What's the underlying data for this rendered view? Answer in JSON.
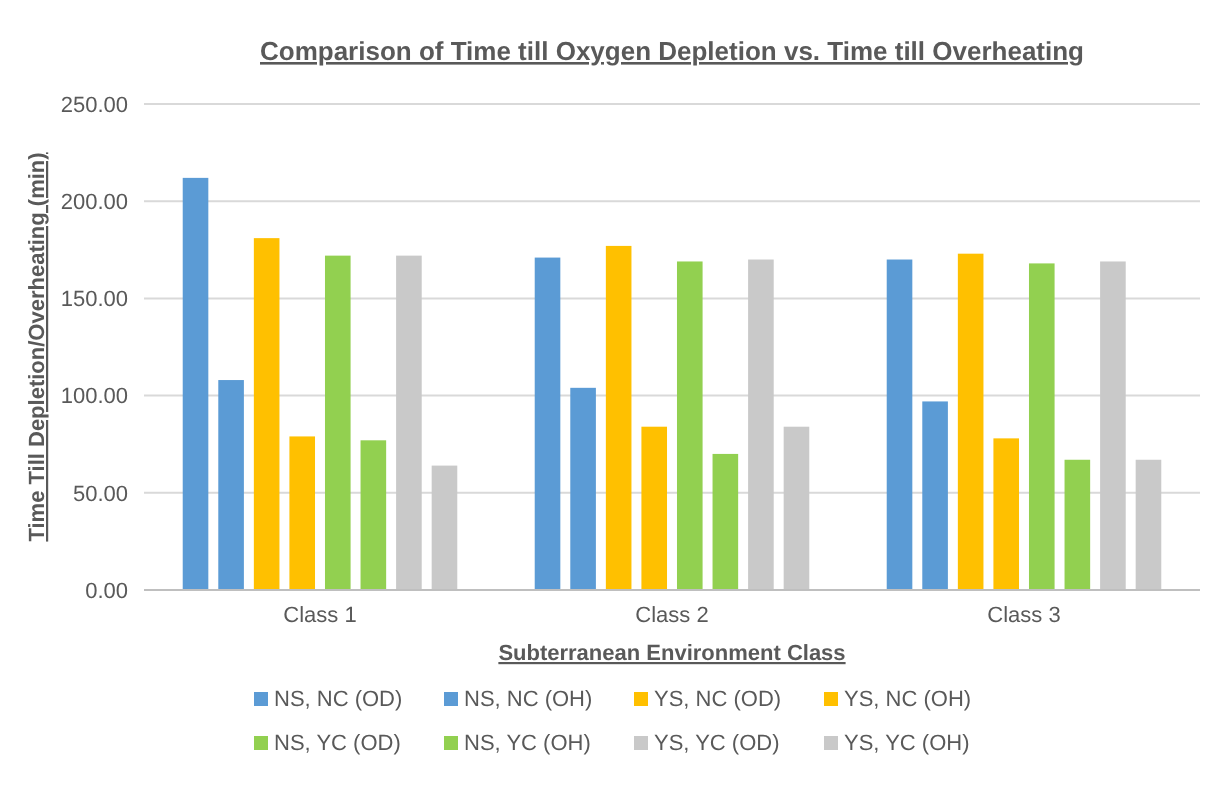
{
  "chart_data": {
    "type": "bar",
    "title": "Comparison of Time till Oxygen Depletion vs. Time till Overheating",
    "xlabel": "Subterranean Environment Class",
    "ylabel": "Time Till Depletion/Overheating (min)",
    "categories": [
      "Class 1",
      "Class 2",
      "Class 3"
    ],
    "series": [
      {
        "name": "NS, NC (OD)",
        "color": "#5b9bd5",
        "values": [
          212,
          171,
          170
        ]
      },
      {
        "name": "NS, NC (OH)",
        "color": "#5b9bd5",
        "values": [
          108,
          104,
          97
        ]
      },
      {
        "name": "YS, NC (OD)",
        "color": "#ffc000",
        "values": [
          181,
          177,
          173
        ]
      },
      {
        "name": "YS, NC (OH)",
        "color": "#ffc000",
        "values": [
          79,
          84,
          78
        ]
      },
      {
        "name": "NS, YC (OD)",
        "color": "#92d050",
        "values": [
          172,
          169,
          168
        ]
      },
      {
        "name": "NS, YC (OH)",
        "color": "#92d050",
        "values": [
          77,
          70,
          67
        ]
      },
      {
        "name": "YS, YC (OD)",
        "color": "#c9c9c9",
        "values": [
          172,
          170,
          169
        ]
      },
      {
        "name": "YS, YC (OH)",
        "color": "#c9c9c9",
        "values": [
          64,
          84,
          67
        ]
      }
    ],
    "ylim": [
      0,
      250
    ],
    "yticks": [
      {
        "value": 0,
        "label": "0.00"
      },
      {
        "value": 50,
        "label": "50.00"
      },
      {
        "value": 100,
        "label": "100.00"
      },
      {
        "value": 150,
        "label": "150.00"
      },
      {
        "value": 200,
        "label": "200.00"
      },
      {
        "value": 250,
        "label": "250.00"
      }
    ],
    "grid": "y",
    "legend": "bottom"
  }
}
